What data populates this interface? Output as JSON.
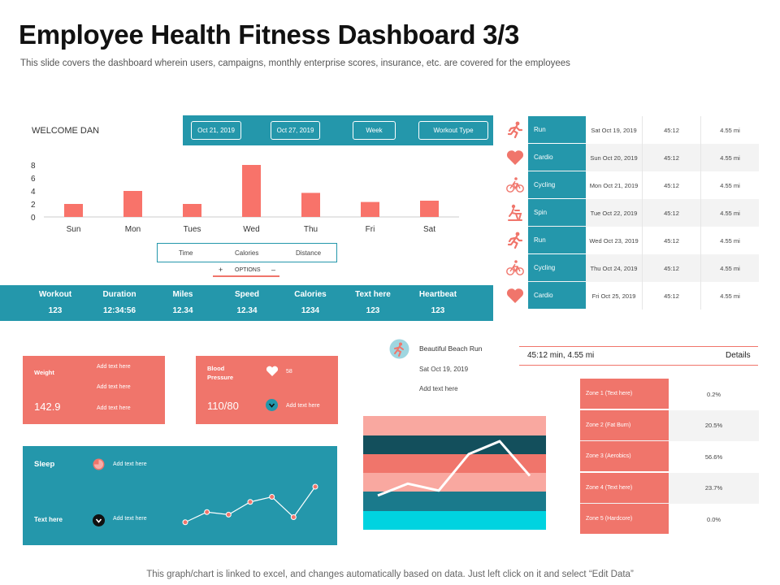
{
  "header": {
    "title": "Employee Health Fitness Dashboard 3/3",
    "subtitle": "This slide covers the dashboard wherein users, campaigns, monthly enterprise scores, insurance, etc. are covered for the employees"
  },
  "controls": {
    "start_date": "Oct 21, 2019",
    "end_date": "Oct 27, 2019",
    "period": "Week",
    "workout_type": "Workout Type"
  },
  "welcome": "WELCOME DAN",
  "chart_data": {
    "type": "bar",
    "categories": [
      "Sun",
      "Mon",
      "Tues",
      "Wed",
      "Thu",
      "Fri",
      "Sat"
    ],
    "values": [
      2,
      4,
      2,
      8,
      3.7,
      2.3,
      2.5
    ],
    "yticks": [
      "0",
      "2",
      "4",
      "6",
      "8"
    ],
    "ylim": [
      0,
      8
    ],
    "color": "#f8736a"
  },
  "metrics": {
    "time": "Time",
    "calories": "Calories",
    "distance": "Distance"
  },
  "options": {
    "plus": "+",
    "label": "OPTIONS",
    "minus": "–"
  },
  "stats": [
    {
      "label": "Workout",
      "value": "123"
    },
    {
      "label": "Duration",
      "value": "12:34:56"
    },
    {
      "label": "Miles",
      "value": "12.34"
    },
    {
      "label": "Speed",
      "value": "12.34"
    },
    {
      "label": "Calories",
      "value": "1234"
    },
    {
      "label": "Text here",
      "value": "123"
    },
    {
      "label": "Heartbeat",
      "value": "123"
    }
  ],
  "activities": [
    {
      "type": "Run",
      "icon": "runner-icon",
      "date": "Sat Oct 19, 2019",
      "time": "45:12",
      "distance": "4.55 mi"
    },
    {
      "type": "Cardio",
      "icon": "heart-icon",
      "date": "Sun Oct 20, 2019",
      "time": "45:12",
      "distance": "4.55 mi"
    },
    {
      "type": "Cycling",
      "icon": "bicycle-icon",
      "date": "Mon Oct 21, 2019",
      "time": "45:12",
      "distance": "4.55 mi"
    },
    {
      "type": "Spin",
      "icon": "spin-bike-icon",
      "date": "Tue Oct 22, 2019",
      "time": "45:12",
      "distance": "4.55 mi"
    },
    {
      "type": "Run",
      "icon": "runner-icon",
      "date": "Wed Oct 23, 2019",
      "time": "45:12",
      "distance": "4.55 mi"
    },
    {
      "type": "Cycling",
      "icon": "bicycle-icon",
      "date": "Thu Oct 24, 2019",
      "time": "45:12",
      "distance": "4.55 mi"
    },
    {
      "type": "Cardio",
      "icon": "heart-icon",
      "date": "Fri Oct 25, 2019",
      "time": "45:12",
      "distance": "4.55 mi"
    }
  ],
  "weight_card": {
    "label": "Weight",
    "value": "142.9",
    "notes": [
      "Add text here",
      "Add text here",
      "Add text here"
    ]
  },
  "bp_card": {
    "label": "Blood Pressure",
    "value": "110/80",
    "heart_rate": "58",
    "note": "Add text here"
  },
  "sleep_card": {
    "label": "Sleep",
    "note1": "Add text here",
    "label2": "Text here",
    "note2": "Add text here",
    "trend": [
      1,
      3,
      2.5,
      5,
      6,
      2,
      8
    ]
  },
  "run_detail": {
    "title": "Beautiful Beach Run",
    "date": "Sat Oct 19, 2019",
    "note": "Add text here",
    "trend": [
      1,
      2.2,
      1.5,
      5.2,
      6.5,
      3
    ]
  },
  "summary": {
    "text": "45:12 min, 4.55 mi",
    "details": "Details"
  },
  "zones": [
    {
      "label": "Zone 1 (Text here)",
      "value": "0.2%"
    },
    {
      "label": "Zone 2 (Fat Burn)",
      "value": "20.5%"
    },
    {
      "label": "Zone 3 (Aerobics)",
      "value": "56.6%"
    },
    {
      "label": "Zone 4 (Text here)",
      "value": "23.7%"
    },
    {
      "label": "Zone 5 (Hardcore)",
      "value": "0.0%"
    }
  ],
  "colors": {
    "teal": "#2497ab",
    "coral": "#f0756b",
    "dark_teal": "#134f5c",
    "cyan": "#00d3e0",
    "pink": "#f9a8a0"
  },
  "footer": "This graph/chart is linked to excel, and changes automatically based on data. Just left click on it and select “Edit Data”"
}
